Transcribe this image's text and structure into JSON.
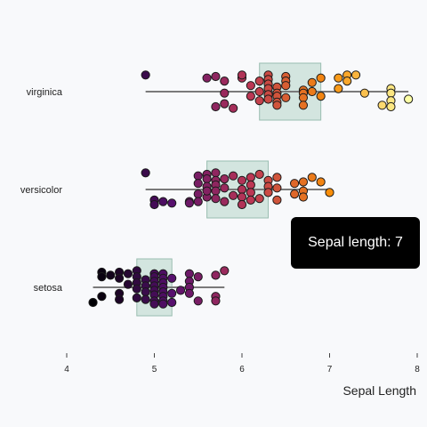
{
  "chart_data": {
    "type": "scatter",
    "title": "",
    "xlabel": "Sepal Length",
    "ylabel": "",
    "xlim": [
      4,
      8
    ],
    "xticks": [
      "4",
      "5",
      "6",
      "7",
      "8"
    ],
    "grid": false,
    "color_scale": "inferno-like, by sepal length",
    "categories": [
      "virginica",
      "versicolor",
      "setosa"
    ],
    "series": [
      {
        "name": "virginica",
        "box": {
          "min": 4.9,
          "q1": 6.2,
          "median": 6.5,
          "q3": 6.9,
          "max": 7.9
        },
        "points": [
          {
            "x": 4.9,
            "y": 0.55
          },
          {
            "x": 5.6,
            "y": 0.45
          },
          {
            "x": 5.7,
            "y": 0.5
          },
          {
            "x": 5.8,
            "y": 0.35
          },
          {
            "x": 5.8,
            "y": -0.05
          },
          {
            "x": 5.8,
            "y": -0.4
          },
          {
            "x": 5.7,
            "y": -0.5
          },
          {
            "x": 5.9,
            "y": -0.55
          },
          {
            "x": 6.0,
            "y": 0.45
          },
          {
            "x": 6.0,
            "y": 0.55
          },
          {
            "x": 6.1,
            "y": 0.2
          },
          {
            "x": 6.1,
            "y": -0.15
          },
          {
            "x": 6.2,
            "y": 0.35
          },
          {
            "x": 6.2,
            "y": 0.0
          },
          {
            "x": 6.2,
            "y": -0.3
          },
          {
            "x": 6.3,
            "y": 0.55
          },
          {
            "x": 6.3,
            "y": 0.4
          },
          {
            "x": 6.3,
            "y": 0.25
          },
          {
            "x": 6.3,
            "y": 0.1
          },
          {
            "x": 6.3,
            "y": -0.1
          },
          {
            "x": 6.3,
            "y": -0.25
          },
          {
            "x": 6.4,
            "y": 0.15
          },
          {
            "x": 6.4,
            "y": -0.05
          },
          {
            "x": 6.4,
            "y": -0.15
          },
          {
            "x": 6.4,
            "y": -0.35
          },
          {
            "x": 6.5,
            "y": 0.5
          },
          {
            "x": 6.5,
            "y": 0.35
          },
          {
            "x": 6.5,
            "y": 0.2
          },
          {
            "x": 6.5,
            "y": -0.2
          },
          {
            "x": 6.4,
            "y": -0.45
          },
          {
            "x": 6.7,
            "y": 0.05
          },
          {
            "x": 6.7,
            "y": -0.05
          },
          {
            "x": 6.7,
            "y": -0.2
          },
          {
            "x": 6.7,
            "y": -0.45
          },
          {
            "x": 6.8,
            "y": 0.3
          },
          {
            "x": 6.8,
            "y": 0.0
          },
          {
            "x": 6.9,
            "y": 0.45
          },
          {
            "x": 6.9,
            "y": -0.15
          },
          {
            "x": 7.1,
            "y": 0.45
          },
          {
            "x": 7.2,
            "y": 0.55
          },
          {
            "x": 7.2,
            "y": 0.35
          },
          {
            "x": 7.3,
            "y": 0.55
          },
          {
            "x": 7.1,
            "y": 0.1
          },
          {
            "x": 7.4,
            "y": -0.05
          },
          {
            "x": 7.7,
            "y": 0.1
          },
          {
            "x": 7.7,
            "y": -0.05
          },
          {
            "x": 7.7,
            "y": -0.3
          },
          {
            "x": 7.6,
            "y": -0.45
          },
          {
            "x": 7.7,
            "y": -0.5
          },
          {
            "x": 7.9,
            "y": -0.25
          }
        ]
      },
      {
        "name": "versicolor",
        "box": {
          "min": 4.9,
          "q1": 5.6,
          "median": 5.9,
          "q3": 6.3,
          "max": 7.0
        },
        "points": [
          {
            "x": 4.9,
            "y": 0.55
          },
          {
            "x": 5.0,
            "y": -0.35
          },
          {
            "x": 5.0,
            "y": -0.5
          },
          {
            "x": 5.1,
            "y": -0.4
          },
          {
            "x": 5.2,
            "y": -0.45
          },
          {
            "x": 5.4,
            "y": -0.4
          },
          {
            "x": 5.5,
            "y": 0.45
          },
          {
            "x": 5.5,
            "y": 0.2
          },
          {
            "x": 5.5,
            "y": -0.15
          },
          {
            "x": 5.4,
            "y": -0.45
          },
          {
            "x": 5.5,
            "y": -0.4
          },
          {
            "x": 5.6,
            "y": 0.5
          },
          {
            "x": 5.6,
            "y": 0.35
          },
          {
            "x": 5.6,
            "y": 0.1
          },
          {
            "x": 5.6,
            "y": -0.25
          },
          {
            "x": 5.6,
            "y": -0.05
          },
          {
            "x": 5.7,
            "y": 0.55
          },
          {
            "x": 5.7,
            "y": 0.3
          },
          {
            "x": 5.7,
            "y": 0.15
          },
          {
            "x": 5.7,
            "y": -0.05
          },
          {
            "x": 5.7,
            "y": -0.3
          },
          {
            "x": 5.8,
            "y": 0.35
          },
          {
            "x": 5.8,
            "y": 0.05
          },
          {
            "x": 5.8,
            "y": -0.4
          },
          {
            "x": 5.9,
            "y": 0.45
          },
          {
            "x": 5.9,
            "y": -0.2
          },
          {
            "x": 6.0,
            "y": 0.3
          },
          {
            "x": 6.0,
            "y": 0.0
          },
          {
            "x": 6.0,
            "y": -0.25
          },
          {
            "x": 6.0,
            "y": -0.5
          },
          {
            "x": 6.1,
            "y": 0.4
          },
          {
            "x": 6.1,
            "y": 0.15
          },
          {
            "x": 6.1,
            "y": -0.1
          },
          {
            "x": 6.1,
            "y": -0.35
          },
          {
            "x": 6.2,
            "y": 0.5
          },
          {
            "x": 6.2,
            "y": -0.3
          },
          {
            "x": 6.3,
            "y": 0.3
          },
          {
            "x": 6.3,
            "y": 0.1
          },
          {
            "x": 6.3,
            "y": -0.1
          },
          {
            "x": 6.4,
            "y": 0.4
          },
          {
            "x": 6.4,
            "y": 0.05
          },
          {
            "x": 6.4,
            "y": -0.35
          },
          {
            "x": 6.6,
            "y": 0.2
          },
          {
            "x": 6.6,
            "y": -0.15
          },
          {
            "x": 6.7,
            "y": 0.25
          },
          {
            "x": 6.7,
            "y": -0.05
          },
          {
            "x": 6.7,
            "y": -0.25
          },
          {
            "x": 6.8,
            "y": 0.4
          },
          {
            "x": 6.9,
            "y": 0.25
          },
          {
            "x": 7.0,
            "y": -0.1
          }
        ]
      },
      {
        "name": "setosa",
        "box": {
          "min": 4.3,
          "q1": 4.8,
          "median": 5.0,
          "q3": 5.2,
          "max": 5.8
        },
        "points": [
          {
            "x": 4.3,
            "y": -0.5
          },
          {
            "x": 4.4,
            "y": 0.5
          },
          {
            "x": 4.4,
            "y": 0.35
          },
          {
            "x": 4.4,
            "y": -0.3
          },
          {
            "x": 4.5,
            "y": 0.4
          },
          {
            "x": 4.6,
            "y": 0.5
          },
          {
            "x": 4.6,
            "y": 0.3
          },
          {
            "x": 4.6,
            "y": -0.2
          },
          {
            "x": 4.6,
            "y": -0.4
          },
          {
            "x": 4.7,
            "y": 0.45
          },
          {
            "x": 4.7,
            "y": 0.1
          },
          {
            "x": 4.8,
            "y": 0.55
          },
          {
            "x": 4.8,
            "y": 0.35
          },
          {
            "x": 4.8,
            "y": 0.15
          },
          {
            "x": 4.8,
            "y": -0.05
          },
          {
            "x": 4.8,
            "y": -0.35
          },
          {
            "x": 4.9,
            "y": 0.25
          },
          {
            "x": 4.9,
            "y": 0.05
          },
          {
            "x": 4.9,
            "y": -0.15
          },
          {
            "x": 4.9,
            "y": -0.4
          },
          {
            "x": 5.0,
            "y": 0.45
          },
          {
            "x": 5.0,
            "y": 0.35
          },
          {
            "x": 5.0,
            "y": 0.2
          },
          {
            "x": 5.0,
            "y": 0.05
          },
          {
            "x": 5.0,
            "y": -0.1
          },
          {
            "x": 5.0,
            "y": -0.25
          },
          {
            "x": 5.0,
            "y": -0.45
          },
          {
            "x": 5.0,
            "y": -0.55
          },
          {
            "x": 5.1,
            "y": 0.45
          },
          {
            "x": 5.1,
            "y": 0.3
          },
          {
            "x": 5.1,
            "y": 0.15
          },
          {
            "x": 5.1,
            "y": 0.0
          },
          {
            "x": 5.1,
            "y": -0.15
          },
          {
            "x": 5.1,
            "y": -0.3
          },
          {
            "x": 5.1,
            "y": -0.45
          },
          {
            "x": 5.1,
            "y": -0.55
          },
          {
            "x": 5.2,
            "y": 0.3
          },
          {
            "x": 5.2,
            "y": -0.2
          },
          {
            "x": 5.2,
            "y": -0.5
          },
          {
            "x": 5.3,
            "y": -0.1
          },
          {
            "x": 5.4,
            "y": 0.45
          },
          {
            "x": 5.4,
            "y": 0.2
          },
          {
            "x": 5.4,
            "y": 0.0
          },
          {
            "x": 5.4,
            "y": -0.2
          },
          {
            "x": 5.5,
            "y": 0.35
          },
          {
            "x": 5.5,
            "y": -0.45
          },
          {
            "x": 5.7,
            "y": 0.4
          },
          {
            "x": 5.7,
            "y": -0.3
          },
          {
            "x": 5.7,
            "y": -0.45
          },
          {
            "x": 5.8,
            "y": 0.55
          }
        ]
      }
    ]
  },
  "tooltip": {
    "text": "Sepal length: 7"
  }
}
